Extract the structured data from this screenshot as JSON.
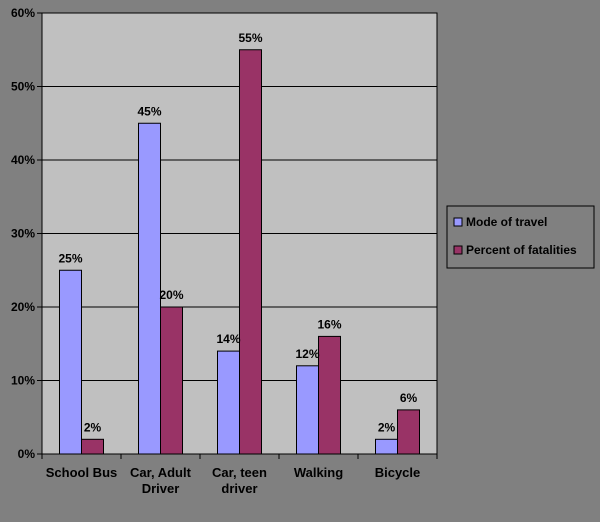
{
  "chart_data": {
    "type": "bar",
    "categories": [
      [
        "School Bus"
      ],
      [
        "Car, Adult",
        "Driver"
      ],
      [
        "Car, teen",
        "driver"
      ],
      [
        "Walking"
      ],
      [
        "Bicycle"
      ]
    ],
    "series": [
      {
        "name": "Mode of travel",
        "values": [
          25,
          45,
          14,
          12,
          2
        ],
        "color": "#9999FF"
      },
      {
        "name": "Percent of fatalities",
        "values": [
          2,
          20,
          55,
          16,
          6
        ],
        "color": "#993366"
      }
    ],
    "ylim": [
      0,
      60
    ],
    "y_ticks": [
      0,
      10,
      20,
      30,
      40,
      50,
      60
    ],
    "y_tick_labels": [
      "0%",
      "10%",
      "20%",
      "30%",
      "40%",
      "50%",
      "60%"
    ],
    "data_label_suffix": "%",
    "grid": true,
    "legend_position": "right",
    "plot_background": "#C0C0C0"
  }
}
